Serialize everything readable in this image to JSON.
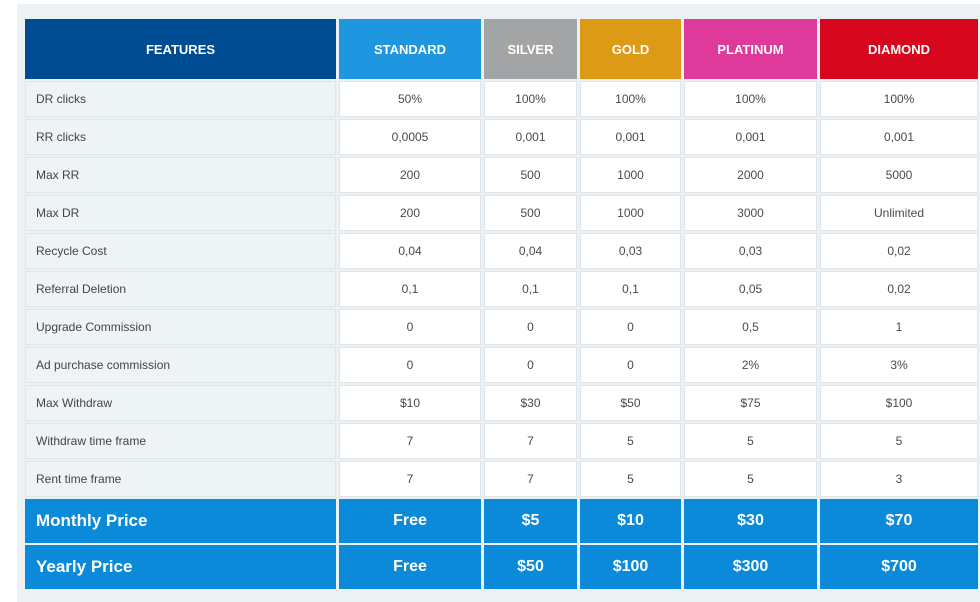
{
  "header": {
    "features": "FEATURES",
    "plans": [
      {
        "name": "STANDARD",
        "color": "#1e96e0"
      },
      {
        "name": "SILVER",
        "color": "#a2a4a6"
      },
      {
        "name": "GOLD",
        "color": "#dc9a16"
      },
      {
        "name": "PLATINUM",
        "color": "#de3a9c"
      },
      {
        "name": "DIAMOND",
        "color": "#d6061d"
      }
    ],
    "features_color": "#004c92"
  },
  "rows": [
    {
      "label": "DR clicks",
      "values": [
        "50%",
        "100%",
        "100%",
        "100%",
        "100%"
      ]
    },
    {
      "label": "RR clicks",
      "values": [
        "0,0005",
        "0,001",
        "0,001",
        "0,001",
        "0,001"
      ]
    },
    {
      "label": "Max RR",
      "values": [
        "200",
        "500",
        "1000",
        "2000",
        "5000"
      ]
    },
    {
      "label": "Max DR",
      "values": [
        "200",
        "500",
        "1000",
        "3000",
        "Unlimited"
      ]
    },
    {
      "label": "Recycle Cost",
      "values": [
        "0,04",
        "0,04",
        "0,03",
        "0,03",
        "0,02"
      ]
    },
    {
      "label": "Referral Deletion",
      "values": [
        "0,1",
        "0,1",
        "0,1",
        "0,05",
        "0,02"
      ]
    },
    {
      "label": "Upgrade Commission",
      "values": [
        "0",
        "0",
        "0",
        "0,5",
        "1"
      ]
    },
    {
      "label": "Ad purchase commission",
      "values": [
        "0",
        "0",
        "0",
        "2%",
        "3%"
      ]
    },
    {
      "label": "Max Withdraw",
      "values": [
        "$10",
        "$30",
        "$50",
        "$75",
        "$100"
      ]
    },
    {
      "label": "Withdraw time frame",
      "values": [
        "7",
        "7",
        "5",
        "5",
        "5"
      ]
    },
    {
      "label": "Rent time frame",
      "values": [
        "7",
        "7",
        "5",
        "5",
        "3"
      ]
    }
  ],
  "prices": [
    {
      "label": "Monthly Price",
      "values": [
        "Free",
        "$5",
        "$10",
        "$30",
        "$70"
      ]
    },
    {
      "label": "Yearly Price",
      "values": [
        "Free",
        "$50",
        "$100",
        "$300",
        "$700"
      ]
    }
  ]
}
